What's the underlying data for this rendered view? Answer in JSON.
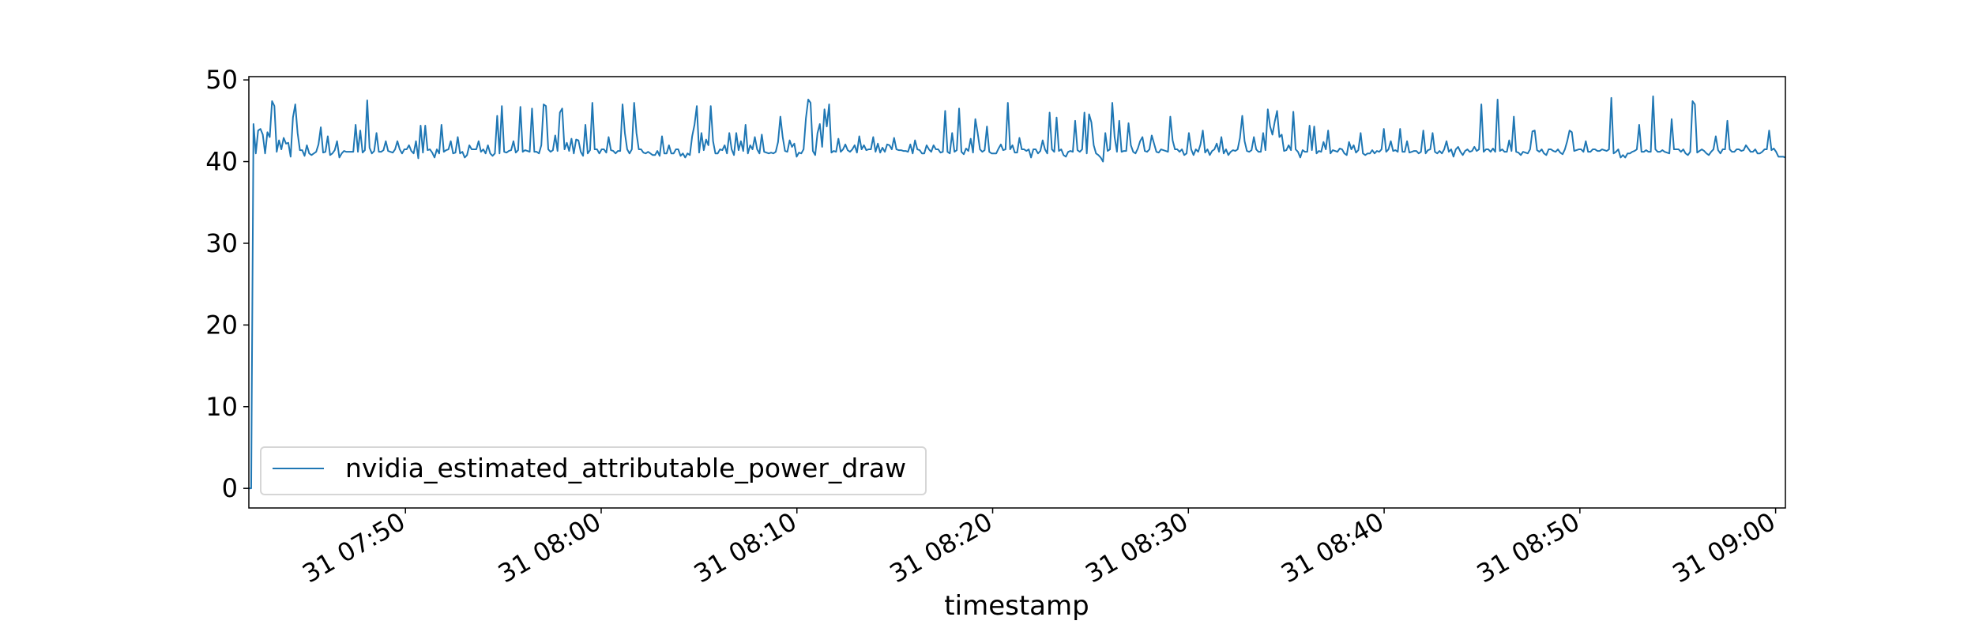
{
  "chart_data": {
    "type": "line",
    "title": "",
    "xlabel": "timestamp",
    "ylabel": "",
    "x_start": "31 07:42:00",
    "x_end": "31 09:00:30",
    "ylim": [
      -2.4,
      50.4
    ],
    "yticks": [
      0,
      10,
      20,
      30,
      40,
      50
    ],
    "xticks": [
      "31 07:50",
      "31 08:00",
      "31 08:10",
      "31 08:20",
      "31 08:30",
      "31 08:40",
      "31 08:50",
      "31 09:00"
    ],
    "grid": false,
    "legend_position": "lower-left",
    "series": [
      {
        "name": "nvidia_estimated_attributable_power_draw",
        "color": "#1f77b4",
        "values": [
          0,
          0,
          44.6,
          41,
          43.8,
          44,
          43.3,
          41,
          43.6,
          43,
          47.4,
          46.8,
          41.2,
          42.6,
          41.5,
          42.9,
          42.2,
          42.3,
          40.6,
          45.4,
          47,
          43.5,
          41.4,
          41.4,
          40.7,
          42,
          41,
          40.8,
          41,
          41.2,
          42.1,
          44.2,
          41.1,
          41.2,
          43.1,
          40.8,
          41,
          41.4,
          42.5,
          40.5,
          41,
          41.3,
          41.2,
          41.2,
          41.2,
          41.2,
          44.5,
          41.2,
          43.8,
          41.1,
          41.4,
          47.5,
          41.7,
          41,
          41.3,
          43.5,
          41.2,
          41.2,
          41.4,
          42.5,
          41.3,
          41.2,
          41.1,
          41.5,
          42.5,
          41.5,
          41,
          41.5,
          41.5,
          42,
          41.3,
          41,
          42.5,
          40.4,
          44.4,
          41.1,
          44.4,
          41.4,
          41.5,
          41.1,
          40.5,
          41.5,
          41,
          44.5,
          41.2,
          41.4,
          41.5,
          42.5,
          41,
          41.1,
          43,
          41,
          41.2,
          40.5,
          40.8,
          42,
          41.5,
          41.5,
          41.5,
          42.5,
          41.2,
          41.5,
          41,
          42,
          41,
          40.7,
          41,
          45.6,
          41,
          46.8,
          41.2,
          41.1,
          41.3,
          41.4,
          42.5,
          41.1,
          41.4,
          46.7,
          41.2,
          41.4,
          41.3,
          41.2,
          46.5,
          41.2,
          41.2,
          41,
          42,
          47,
          46.8,
          41.5,
          41.2,
          41.4,
          43.2,
          41.3,
          46,
          46.5,
          41.5,
          42.3,
          41.3,
          42.8,
          41,
          42.7,
          42.6,
          41.2,
          40.7,
          44.5,
          41,
          41.4,
          47.2,
          41.5,
          41.5,
          41,
          41.5,
          41.5,
          41.1,
          43,
          41.4,
          41.3,
          41,
          41.3,
          41.3,
          47,
          43.5,
          41.5,
          41,
          41.5,
          47.2,
          43.5,
          41.5,
          41.5,
          41.1,
          41,
          41.2,
          41,
          40.8,
          40.8,
          41.3,
          40.7,
          43.1,
          41,
          41,
          42,
          41,
          41,
          41.5,
          41.5,
          40.7,
          41,
          40.5,
          41,
          40.8,
          43.1,
          44.5,
          46.8,
          41.1,
          43.5,
          41.4,
          42.7,
          42,
          46.8,
          42.5,
          41,
          41,
          41.5,
          41.4,
          42,
          41,
          43.5,
          41.5,
          40.8,
          43.5,
          41.4,
          42.5,
          41.3,
          44.5,
          41,
          42,
          41.5,
          43,
          41.5,
          41,
          43.3,
          41.2,
          41.1,
          41,
          41.1,
          41,
          41.2,
          42.4,
          45.5,
          43,
          41.3,
          41.2,
          42.6,
          41.8,
          42.2,
          40.6,
          41.1,
          41,
          41.5,
          45.3,
          47.6,
          47.2,
          41.3,
          40.8,
          43.5,
          44.6,
          41.8,
          46.4,
          44.3,
          47,
          41.1,
          41.3,
          41.2,
          42.8,
          41.2,
          41.5,
          42.1,
          41.4,
          41.2,
          41.5,
          42,
          41.1,
          43.1,
          41.5,
          42,
          41.4,
          41.5,
          41.5,
          43,
          41.2,
          42.2,
          41.1,
          41.7,
          41.2,
          42.1,
          42,
          41.5,
          42.9,
          41.5,
          41.4,
          41.4,
          41.3,
          41.3,
          41.2,
          42.1,
          41,
          42.6,
          41.5,
          41.4,
          41,
          41,
          42,
          41.5,
          41.2,
          42,
          41.5,
          41.5,
          41.1,
          41.2,
          46.2,
          41.2,
          41,
          43.5,
          41.2,
          41.4,
          46.5,
          41.2,
          40.9,
          41.6,
          41.3,
          42.8,
          41.1,
          45.2,
          43.5,
          41.5,
          41.2,
          41.4,
          44.3,
          41.2,
          41,
          41,
          41,
          41.6,
          42.1,
          41.4,
          41.5,
          47.2,
          41.5,
          42,
          41.1,
          41.1,
          42.9,
          41.5,
          41.5,
          41.3,
          41.5,
          40.5,
          41.5,
          41.5,
          41,
          41.3,
          42.6,
          41.5,
          41,
          46,
          41.5,
          41.2,
          45.4,
          41.3,
          41.5,
          40.8,
          40.6,
          41.2,
          41.3,
          41.2,
          45,
          41.4,
          41.2,
          41.5,
          46,
          41,
          45.8,
          44.8,
          42,
          41,
          40.8,
          40.5,
          40,
          43.5,
          41.3,
          41.5,
          47.2,
          43,
          41.2,
          45,
          41.2,
          41.3,
          41.3,
          44.7,
          42,
          41.2,
          41,
          41.6,
          42.5,
          43,
          41.3,
          41.2,
          41.5,
          43.2,
          42.2,
          41.2,
          41.1,
          41.5,
          41.4,
          41.3,
          41.2,
          45.5,
          42.6,
          41.5,
          41.5,
          41.2,
          41.5,
          40.8,
          41,
          43.5,
          41.5,
          40.8,
          41.5,
          41.2,
          42.1,
          43.8,
          41.1,
          41.5,
          40.8,
          41.3,
          41.5,
          42.2,
          41.2,
          43,
          41,
          41.5,
          40.8,
          41.2,
          41.4,
          41.3,
          41.5,
          42.9,
          45.6,
          42.5,
          41.3,
          41.2,
          41.4,
          43,
          41.5,
          41.2,
          41.2,
          43.5,
          41.4,
          46.4,
          44.3,
          43.3,
          44.9,
          46.2,
          43,
          43.3,
          41.3,
          41.4,
          42,
          41.4,
          46.1,
          41.5,
          41.2,
          40.5,
          41.4,
          41.2,
          41.2,
          44.4,
          41.4,
          44.3,
          41,
          41.3,
          41.2,
          42.4,
          41.5,
          43.8,
          41,
          41.4,
          41.3,
          41.2,
          41.6,
          41.5,
          41,
          40.8,
          42.4,
          41.5,
          42,
          41.1,
          41.4,
          43.5,
          41,
          40.8,
          41,
          41,
          41.4,
          41,
          41.3,
          41.2,
          41.5,
          44,
          41.2,
          41.5,
          42.5,
          41.3,
          41.4,
          41.2,
          44,
          41.2,
          41.2,
          42.5,
          41.1,
          41.2,
          41.3,
          41.3,
          41,
          41.2,
          43.8,
          41,
          41.4,
          41.5,
          43.5,
          41.2,
          41,
          41.3,
          41,
          41.5,
          42.5,
          41.2,
          41.5,
          40.6,
          41.5,
          41.8,
          41.2,
          40.8,
          41.3,
          41.5,
          41.2,
          41.3,
          41.8,
          41.3,
          41.5,
          47,
          41.2,
          41.5,
          41.5,
          41.2,
          41.6,
          41.2,
          47.6,
          41.3,
          41.5,
          41.2,
          41.2,
          42.6,
          41.3,
          45.5,
          41.2,
          41.1,
          40.8,
          41.2,
          41.1,
          41,
          41.5,
          43.7,
          43.8,
          41.4,
          41.2,
          41.5,
          41,
          40.8,
          41.5,
          41.5,
          41.3,
          41.2,
          41.5,
          41.1,
          40.9,
          41.5,
          42.5,
          43.8,
          43.6,
          41.3,
          41.4,
          41.5,
          41.5,
          41.2,
          42.5,
          41.2,
          41.2,
          41.5,
          41.5,
          41.3,
          41.3,
          41.5,
          41.4,
          41.3,
          41.5,
          47.8,
          41,
          41.2,
          41.5,
          40.5,
          40.8,
          40.5,
          41,
          41,
          41.2,
          41.3,
          41.5,
          44.5,
          41.2,
          41.2,
          41.4,
          41.2,
          41.2,
          48,
          41.5,
          41.2,
          41.2,
          41.4,
          41.2,
          41.1,
          41,
          45.2,
          41.5,
          41.5,
          41.5,
          41.2,
          41.5,
          41,
          40.8,
          41.2,
          47.4,
          47,
          41.1,
          41.3,
          41.5,
          41.3,
          41,
          40.8,
          41.2,
          41.5,
          43.1,
          41.4,
          41,
          41.5,
          41.5,
          45,
          41.5,
          41.2,
          41.2,
          41.5,
          41.5,
          41.3,
          41.4,
          42,
          41.6,
          41.2,
          41.2,
          41.5,
          41,
          41,
          41.2,
          41.5,
          41.5,
          43.8,
          41.4,
          41.6,
          41.2,
          40.6,
          40.6,
          40.6,
          40.5
        ]
      }
    ]
  }
}
